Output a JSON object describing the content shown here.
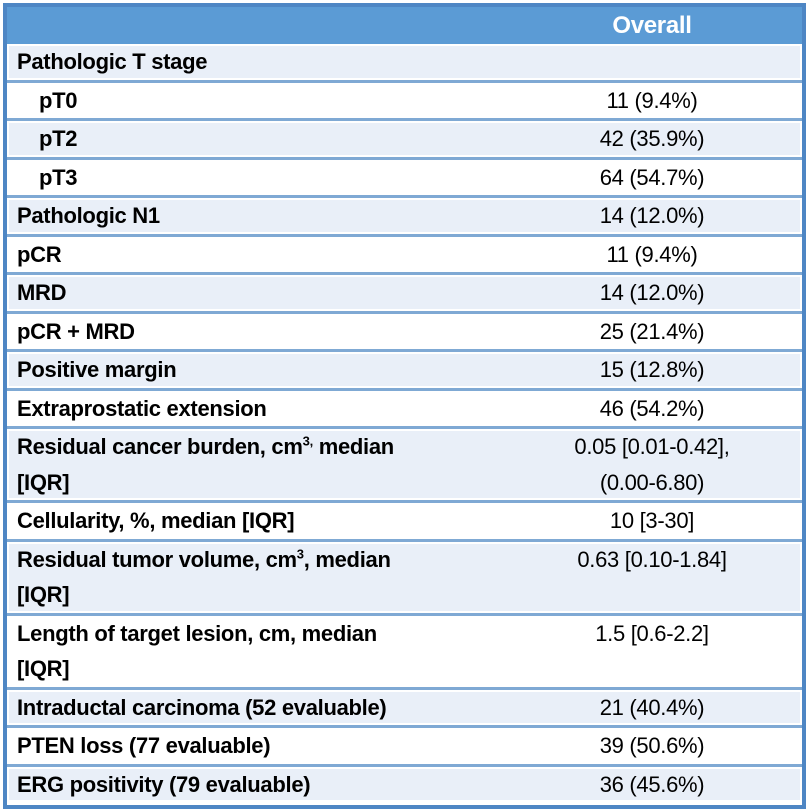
{
  "colors": {
    "header_bg": "#5B9BD5",
    "header_text": "#FFFFFF",
    "band_row_bg": "#E9EFF8",
    "plain_row_bg": "#FFFFFF",
    "frame_border": "#4E86C4",
    "row_separator": "#7FA9D4",
    "text": "#000000"
  },
  "header": {
    "label_col": "",
    "value_col": "Overall"
  },
  "rows": [
    {
      "label": "Pathologic T stage",
      "value": "",
      "indent": false
    },
    {
      "label": "pT0",
      "value": "11 (9.4%)",
      "indent": true
    },
    {
      "label": "pT2",
      "value": "42 (35.9%)",
      "indent": true
    },
    {
      "label": "pT3",
      "value": "64 (54.7%)",
      "indent": true
    },
    {
      "label": "Pathologic N1",
      "value": "14 (12.0%)",
      "indent": false
    },
    {
      "label": "pCR",
      "value": "11 (9.4%)",
      "indent": false
    },
    {
      "label": "MRD",
      "value": "14 (12.0%)",
      "indent": false
    },
    {
      "label": "pCR + MRD",
      "value": "25 (21.4%)",
      "indent": false
    },
    {
      "label": "Positive margin",
      "value": "15 (12.8%)",
      "indent": false
    },
    {
      "label": "Extraprostatic extension",
      "value": "46 (54.2%)",
      "indent": false
    },
    {
      "label": "Residual cancer burden, cm",
      "label_sup": "3,",
      "label_post": " median",
      "label_line2": "[IQR]",
      "value": "0.05 [0.01-0.42],",
      "value_line2": "(0.00-6.80)",
      "indent": false
    },
    {
      "label": "Cellularity, %, median [IQR]",
      "value": "10 [3-30]",
      "indent": false
    },
    {
      "label": "Residual tumor volume, cm",
      "label_sup": "3",
      "label_post": ", median",
      "label_line2": "[IQR]",
      "value": "0.63 [0.10-1.84]",
      "indent": false
    },
    {
      "label": "Length of target lesion, cm, median",
      "label_line2": "[IQR]",
      "value": "1.5 [0.6-2.2]",
      "indent": false
    },
    {
      "label": "Intraductal carcinoma (52 evaluable)",
      "value": "21 (40.4%)",
      "indent": false
    },
    {
      "label": "PTEN loss (77 evaluable)",
      "value": "39 (50.6%)",
      "indent": false
    },
    {
      "label": "ERG positivity (79 evaluable)",
      "value": "36 (45.6%)",
      "indent": false
    }
  ]
}
